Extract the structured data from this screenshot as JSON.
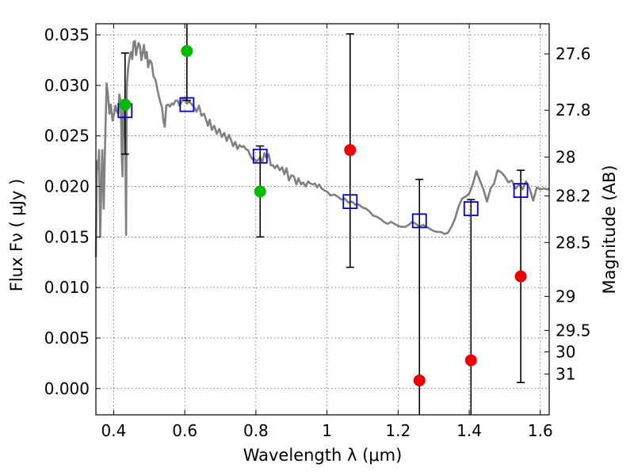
{
  "chart_data": {
    "type": "scatter",
    "xlabel": "Wavelength  λ (μm)",
    "ylabel": "Flux  Fν  ( μJy )",
    "ylabel_right": "Magnitude (AB)",
    "xlim": [
      0.35,
      1.625
    ],
    "ylim": [
      -0.0026,
      0.0361
    ],
    "grid": true,
    "x_ticks": [
      {
        "value": 0.4,
        "label": "0.4"
      },
      {
        "value": 0.6,
        "label": "0.6"
      },
      {
        "value": 0.8,
        "label": "0.8"
      },
      {
        "value": 1.0,
        "label": "1"
      },
      {
        "value": 1.2,
        "label": "1.2"
      },
      {
        "value": 1.4,
        "label": "1.4"
      },
      {
        "value": 1.6,
        "label": "1.6"
      }
    ],
    "y_ticks": [
      {
        "value": 0.0,
        "label": "0.000"
      },
      {
        "value": 0.005,
        "label": "0.005"
      },
      {
        "value": 0.01,
        "label": "0.010"
      },
      {
        "value": 0.015,
        "label": "0.015"
      },
      {
        "value": 0.02,
        "label": "0.020"
      },
      {
        "value": 0.025,
        "label": "0.025"
      },
      {
        "value": 0.03,
        "label": "0.030"
      },
      {
        "value": 0.035,
        "label": "0.035"
      }
    ],
    "right_ticks": [
      {
        "mag": 27.6,
        "label": "27.6"
      },
      {
        "mag": 27.8,
        "label": "27.8"
      },
      {
        "mag": 28.0,
        "label": "28"
      },
      {
        "mag": 28.2,
        "label": "28.2"
      },
      {
        "mag": 28.5,
        "label": "28.5"
      },
      {
        "mag": 29.0,
        "label": "29"
      },
      {
        "mag": 29.5,
        "label": "29.5"
      },
      {
        "mag": 30.0,
        "label": "30"
      },
      {
        "mag": 31.0,
        "label": "31"
      }
    ],
    "model_spectrum": {
      "color": "#808080",
      "points": [
        [
          0.35,
          0.013
        ],
        [
          0.353,
          0.0225
        ],
        [
          0.356,
          0.0217
        ],
        [
          0.359,
          0.0236
        ],
        [
          0.362,
          0.015
        ],
        [
          0.365,
          0.0193
        ],
        [
          0.368,
          0.0236
        ],
        [
          0.372,
          0.0178
        ],
        [
          0.376,
          0.0245
        ],
        [
          0.38,
          0.0302
        ],
        [
          0.384,
          0.029
        ],
        [
          0.388,
          0.0272
        ],
        [
          0.392,
          0.0281
        ],
        [
          0.397,
          0.0265
        ],
        [
          0.401,
          0.0272
        ],
        [
          0.405,
          0.028
        ],
        [
          0.409,
          0.0274
        ],
        [
          0.413,
          0.0272
        ],
        [
          0.416,
          0.0291
        ],
        [
          0.42,
          0.0283
        ],
        [
          0.423,
          0.023
        ],
        [
          0.425,
          0.021
        ],
        [
          0.427,
          0.028
        ],
        [
          0.43,
          0.025
        ],
        [
          0.432,
          0.0268
        ],
        [
          0.435,
          0.0152
        ],
        [
          0.437,
          0.03
        ],
        [
          0.441,
          0.0318
        ],
        [
          0.445,
          0.0328
        ],
        [
          0.449,
          0.0333
        ],
        [
          0.452,
          0.0326
        ],
        [
          0.456,
          0.0343
        ],
        [
          0.46,
          0.0344
        ],
        [
          0.463,
          0.033
        ],
        [
          0.466,
          0.0336
        ],
        [
          0.47,
          0.0342
        ],
        [
          0.474,
          0.0339
        ],
        [
          0.478,
          0.0325
        ],
        [
          0.481,
          0.0331
        ],
        [
          0.485,
          0.034
        ],
        [
          0.489,
          0.0327
        ],
        [
          0.493,
          0.0333
        ],
        [
          0.497,
          0.0318
        ],
        [
          0.502,
          0.0325
        ],
        [
          0.507,
          0.0322
        ],
        [
          0.512,
          0.0309
        ],
        [
          0.518,
          0.0305
        ],
        [
          0.524,
          0.0294
        ],
        [
          0.53,
          0.0285
        ],
        [
          0.536,
          0.0278
        ],
        [
          0.54,
          0.0265
        ],
        [
          0.544,
          0.0259
        ],
        [
          0.548,
          0.028
        ],
        [
          0.553,
          0.0281
        ],
        [
          0.558,
          0.0279
        ],
        [
          0.563,
          0.0282
        ],
        [
          0.568,
          0.0281
        ],
        [
          0.574,
          0.0285
        ],
        [
          0.58,
          0.0285
        ],
        [
          0.585,
          0.028
        ],
        [
          0.59,
          0.0283
        ],
        [
          0.595,
          0.0287
        ],
        [
          0.601,
          0.0288
        ],
        [
          0.606,
          0.0282
        ],
        [
          0.613,
          0.0284
        ],
        [
          0.62,
          0.0281
        ],
        [
          0.627,
          0.0278
        ],
        [
          0.633,
          0.0274
        ],
        [
          0.64,
          0.028
        ],
        [
          0.647,
          0.027
        ],
        [
          0.654,
          0.0272
        ],
        [
          0.66,
          0.0266
        ],
        [
          0.665,
          0.026
        ],
        [
          0.67,
          0.0266
        ],
        [
          0.676,
          0.0256
        ],
        [
          0.683,
          0.026
        ],
        [
          0.69,
          0.0252
        ],
        [
          0.697,
          0.0257
        ],
        [
          0.704,
          0.0249
        ],
        [
          0.711,
          0.0253
        ],
        [
          0.718,
          0.0245
        ],
        [
          0.724,
          0.0251
        ],
        [
          0.73,
          0.0246
        ],
        [
          0.736,
          0.024
        ],
        [
          0.742,
          0.0244
        ],
        [
          0.748,
          0.0237
        ],
        [
          0.754,
          0.0241
        ],
        [
          0.76,
          0.0239
        ],
        [
          0.766,
          0.024
        ],
        [
          0.772,
          0.0237
        ],
        [
          0.778,
          0.0236
        ],
        [
          0.785,
          0.023
        ],
        [
          0.79,
          0.0227
        ],
        [
          0.795,
          0.0228
        ],
        [
          0.8,
          0.0225
        ],
        [
          0.806,
          0.0226
        ],
        [
          0.812,
          0.0229
        ],
        [
          0.818,
          0.0224
        ],
        [
          0.824,
          0.0233
        ],
        [
          0.83,
          0.0228
        ],
        [
          0.836,
          0.0232
        ],
        [
          0.842,
          0.0221
        ],
        [
          0.848,
          0.0221
        ],
        [
          0.853,
          0.0218
        ],
        [
          0.86,
          0.0221
        ],
        [
          0.867,
          0.0216
        ],
        [
          0.874,
          0.0219
        ],
        [
          0.88,
          0.0212
        ],
        [
          0.886,
          0.0218
        ],
        [
          0.893,
          0.0206
        ],
        [
          0.9,
          0.0211
        ],
        [
          0.907,
          0.021
        ],
        [
          0.914,
          0.0202
        ],
        [
          0.92,
          0.0208
        ],
        [
          0.927,
          0.0202
        ],
        [
          0.933,
          0.0204
        ],
        [
          0.94,
          0.02
        ],
        [
          0.947,
          0.0205
        ],
        [
          0.953,
          0.0203
        ],
        [
          0.96,
          0.0202
        ],
        [
          0.966,
          0.0203
        ],
        [
          0.972,
          0.0199
        ],
        [
          0.978,
          0.0202
        ],
        [
          0.985,
          0.0198
        ],
        [
          0.993,
          0.0196
        ],
        [
          1.0,
          0.0195
        ],
        [
          1.01,
          0.0191
        ],
        [
          1.02,
          0.0192
        ],
        [
          1.03,
          0.019
        ],
        [
          1.04,
          0.0187
        ],
        [
          1.05,
          0.0188
        ],
        [
          1.06,
          0.0184
        ],
        [
          1.07,
          0.0185
        ],
        [
          1.08,
          0.0182
        ],
        [
          1.09,
          0.0182
        ],
        [
          1.1,
          0.0179
        ],
        [
          1.11,
          0.0178
        ],
        [
          1.12,
          0.0175
        ],
        [
          1.13,
          0.0171
        ],
        [
          1.14,
          0.017
        ],
        [
          1.15,
          0.0168
        ],
        [
          1.16,
          0.0165
        ],
        [
          1.17,
          0.0163
        ],
        [
          1.18,
          0.0165
        ],
        [
          1.19,
          0.0163
        ],
        [
          1.2,
          0.0161
        ],
        [
          1.21,
          0.016
        ],
        [
          1.22,
          0.016
        ],
        [
          1.23,
          0.0162
        ],
        [
          1.24,
          0.0165
        ],
        [
          1.25,
          0.0163
        ],
        [
          1.26,
          0.016
        ],
        [
          1.27,
          0.0162
        ],
        [
          1.28,
          0.016
        ],
        [
          1.29,
          0.0158
        ],
        [
          1.3,
          0.0156
        ],
        [
          1.31,
          0.0155
        ],
        [
          1.32,
          0.0155
        ],
        [
          1.33,
          0.0153
        ],
        [
          1.34,
          0.0154
        ],
        [
          1.35,
          0.016
        ],
        [
          1.36,
          0.0168
        ],
        [
          1.37,
          0.018
        ],
        [
          1.38,
          0.0188
        ],
        [
          1.39,
          0.019
        ],
        [
          1.4,
          0.0193
        ],
        [
          1.41,
          0.0202
        ],
        [
          1.42,
          0.0215
        ],
        [
          1.43,
          0.0206
        ],
        [
          1.44,
          0.0197
        ],
        [
          1.45,
          0.0185
        ],
        [
          1.46,
          0.0198
        ],
        [
          1.47,
          0.0203
        ],
        [
          1.48,
          0.0216
        ],
        [
          1.49,
          0.0214
        ],
        [
          1.5,
          0.021
        ],
        [
          1.51,
          0.0204
        ],
        [
          1.52,
          0.0206
        ],
        [
          1.53,
          0.0198
        ],
        [
          1.54,
          0.0202
        ],
        [
          1.55,
          0.0197
        ],
        [
          1.56,
          0.0205
        ],
        [
          1.57,
          0.0198
        ],
        [
          1.58,
          0.0186
        ],
        [
          1.59,
          0.0199
        ],
        [
          1.6,
          0.0197
        ],
        [
          1.61,
          0.0198
        ],
        [
          1.62,
          0.0197
        ],
        [
          1.625,
          0.0198
        ]
      ]
    },
    "model_photometry": {
      "color": "#0000cc",
      "points": [
        {
          "x": 0.432,
          "y": 0.0275
        },
        {
          "x": 0.606,
          "y": 0.0281
        },
        {
          "x": 0.812,
          "y": 0.023
        },
        {
          "x": 1.065,
          "y": 0.0185
        },
        {
          "x": 1.26,
          "y": 0.0166
        },
        {
          "x": 1.405,
          "y": 0.0178
        },
        {
          "x": 1.545,
          "y": 0.0196
        }
      ]
    },
    "observed": [
      {
        "x": 0.432,
        "y": 0.0281,
        "err_low": 0.0232,
        "err_high": 0.0332,
        "color": "#00bb00"
      },
      {
        "x": 0.606,
        "y": 0.0334,
        "err_low": 0.0285,
        "err_high": 0.0361,
        "color": "#00bb00"
      },
      {
        "x": 0.812,
        "y": 0.0195,
        "err_low": 0.015,
        "err_high": 0.024,
        "color": "#00bb00"
      },
      {
        "x": 1.065,
        "y": 0.0236,
        "err_low": 0.012,
        "err_high": 0.0351,
        "color": "#ee0000"
      },
      {
        "x": 1.26,
        "y": 0.0008,
        "err_low": -0.0026,
        "err_high": 0.0207,
        "color": "#ee0000"
      },
      {
        "x": 1.405,
        "y": 0.0028,
        "err_low": -0.0026,
        "err_high": 0.0187,
        "color": "#ee0000"
      },
      {
        "x": 1.545,
        "y": 0.0111,
        "err_low": 0.0006,
        "err_high": 0.0216,
        "color": "#ee0000"
      }
    ]
  }
}
